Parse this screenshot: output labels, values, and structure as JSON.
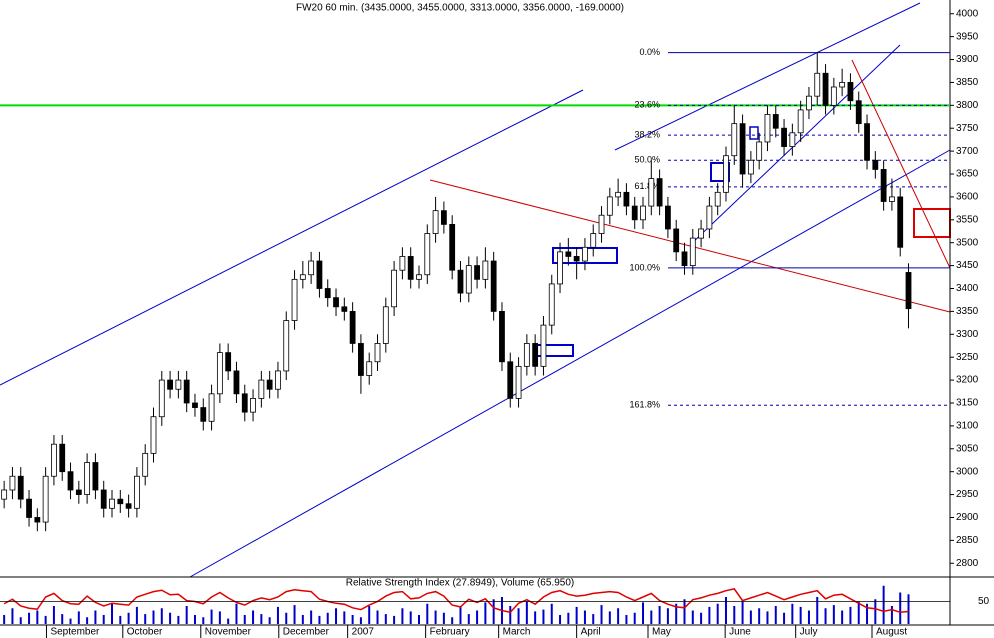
{
  "chart_data": {
    "type": "candlestick",
    "title": "FW20 60 min. (3435.0000, 3455.0000, 3313.0000, 3356.0000, -169.0000)",
    "open": [
      2940,
      2960,
      2990,
      2940,
      2900,
      2890,
      2990,
      3060,
      3000,
      2960,
      2950,
      3020,
      2960,
      2920,
      2940,
      2930,
      2920,
      2990,
      3040,
      3120,
      3200,
      3180,
      3200,
      3150,
      3140,
      3110,
      3170,
      3260,
      3220,
      3170,
      3130,
      3160,
      3200,
      3180,
      3220,
      3330,
      3420,
      3430,
      3460,
      3400,
      3380,
      3360,
      3350,
      3280,
      3210,
      3240,
      3280,
      3360,
      3440,
      3470,
      3420,
      3430,
      3520,
      3570,
      3540,
      3440,
      3390,
      3450,
      3420,
      3460,
      3350,
      3240,
      3160,
      3230,
      3280,
      3230,
      3320,
      3410,
      3480,
      3470,
      3460,
      3490,
      3520,
      3560,
      3600,
      3610,
      3580,
      3550,
      3580,
      3640,
      3580,
      3530,
      3480,
      3450,
      3510,
      3530,
      3580,
      3610,
      3690,
      3760,
      3650,
      3680,
      3720,
      3780,
      3750,
      3710,
      3740,
      3790,
      3820,
      3870,
      3800,
      3840,
      3850,
      3810,
      3760,
      3680,
      3660,
      3590,
      3600,
      3435
    ],
    "high": [
      2980,
      3010,
      3010,
      2960,
      2920,
      3010,
      3080,
      3080,
      3020,
      2980,
      3040,
      3040,
      2980,
      2960,
      2960,
      2950,
      3010,
      3060,
      3140,
      3220,
      3220,
      3220,
      3220,
      3170,
      3160,
      3190,
      3280,
      3280,
      3240,
      3190,
      3180,
      3220,
      3220,
      3240,
      3350,
      3440,
      3460,
      3480,
      3480,
      3420,
      3400,
      3380,
      3370,
      3300,
      3260,
      3300,
      3380,
      3460,
      3490,
      3490,
      3450,
      3540,
      3600,
      3590,
      3560,
      3460,
      3470,
      3470,
      3490,
      3480,
      3370,
      3260,
      3250,
      3300,
      3300,
      3340,
      3430,
      3500,
      3510,
      3490,
      3510,
      3540,
      3580,
      3620,
      3640,
      3630,
      3600,
      3600,
      3680,
      3660,
      3600,
      3550,
      3500,
      3530,
      3550,
      3600,
      3630,
      3710,
      3800,
      3780,
      3700,
      3740,
      3800,
      3800,
      3770,
      3760,
      3810,
      3840,
      3915,
      3890,
      3860,
      3880,
      3870,
      3830,
      3780,
      3700,
      3680,
      3640,
      3620,
      3455
    ],
    "low": [
      2920,
      2940,
      2920,
      2880,
      2870,
      2870,
      2970,
      2980,
      2940,
      2930,
      2930,
      2940,
      2900,
      2900,
      2910,
      2900,
      2900,
      2970,
      3020,
      3100,
      3160,
      3160,
      3130,
      3120,
      3090,
      3090,
      3150,
      3200,
      3150,
      3110,
      3110,
      3140,
      3160,
      3160,
      3200,
      3310,
      3400,
      3410,
      3380,
      3360,
      3340,
      3330,
      3260,
      3170,
      3190,
      3220,
      3260,
      3340,
      3420,
      3400,
      3400,
      3410,
      3500,
      3520,
      3420,
      3370,
      3370,
      3400,
      3400,
      3330,
      3220,
      3140,
      3140,
      3210,
      3210,
      3210,
      3300,
      3390,
      3450,
      3420,
      3440,
      3470,
      3500,
      3540,
      3580,
      3560,
      3530,
      3530,
      3560,
      3560,
      3510,
      3460,
      3430,
      3430,
      3490,
      3510,
      3560,
      3590,
      3670,
      3620,
      3630,
      3660,
      3700,
      3730,
      3690,
      3690,
      3720,
      3770,
      3800,
      3780,
      3780,
      3820,
      3790,
      3740,
      3660,
      3640,
      3570,
      3570,
      3470,
      3313
    ],
    "close": [
      2960,
      2990,
      2940,
      2900,
      2890,
      2990,
      3060,
      3000,
      2960,
      2950,
      3020,
      2960,
      2920,
      2940,
      2930,
      2920,
      2990,
      3040,
      3120,
      3200,
      3180,
      3200,
      3150,
      3140,
      3110,
      3170,
      3260,
      3220,
      3170,
      3130,
      3160,
      3200,
      3180,
      3220,
      3330,
      3420,
      3430,
      3460,
      3400,
      3380,
      3360,
      3350,
      3280,
      3210,
      3240,
      3280,
      3360,
      3440,
      3470,
      3420,
      3430,
      3520,
      3570,
      3540,
      3440,
      3390,
      3450,
      3420,
      3460,
      3350,
      3240,
      3160,
      3230,
      3280,
      3230,
      3320,
      3410,
      3480,
      3470,
      3460,
      3490,
      3520,
      3560,
      3600,
      3610,
      3580,
      3550,
      3580,
      3640,
      3580,
      3530,
      3480,
      3450,
      3510,
      3530,
      3580,
      3610,
      3690,
      3760,
      3650,
      3680,
      3720,
      3780,
      3750,
      3710,
      3740,
      3790,
      3820,
      3870,
      3800,
      3840,
      3850,
      3810,
      3760,
      3680,
      3660,
      3590,
      3600,
      3490,
      3356
    ],
    "color_up": "#ffffff",
    "color_down": "#000000",
    "ylim": [
      2770,
      4030
    ],
    "yticks": [
      2800,
      2850,
      2900,
      2950,
      3000,
      3050,
      3100,
      3150,
      3200,
      3250,
      3300,
      3350,
      3400,
      3450,
      3500,
      3550,
      3600,
      3650,
      3700,
      3750,
      3800,
      3850,
      3900,
      3950,
      4000
    ],
    "xlim": [
      -0.5,
      114
    ],
    "xticks": [
      {
        "value": 5.1,
        "label": "September"
      },
      {
        "value": 14.3,
        "label": "October"
      },
      {
        "value": 23.7,
        "label": "November"
      },
      {
        "value": 33.1,
        "label": "December"
      },
      {
        "value": 41.4,
        "label": "2007"
      },
      {
        "value": 50.8,
        "label": "February"
      },
      {
        "value": 59.6,
        "label": "March"
      },
      {
        "value": 69,
        "label": "April"
      },
      {
        "value": 77.6,
        "label": "May"
      },
      {
        "value": 86.9,
        "label": "June"
      },
      {
        "value": 95.4,
        "label": "July"
      },
      {
        "value": 104.6,
        "label": "August"
      }
    ],
    "support_line": {
      "value": 3800,
      "color": "#00dd00"
    },
    "fib_levels": [
      {
        "label": "0.0%",
        "value": 3915,
        "dashed": false
      },
      {
        "label": "23.6%",
        "value": 3800,
        "dashed": true
      },
      {
        "label": "38.2%",
        "value": 3735,
        "dashed": true
      },
      {
        "label": "50.0%",
        "value": 3680,
        "dashed": true
      },
      {
        "label": "61.8%",
        "value": 3622,
        "dashed": true
      },
      {
        "label": "100.0%",
        "value": 3445,
        "dashed": false
      },
      {
        "label": "161.8%",
        "value": 3145,
        "dashed": true
      }
    ],
    "indicator": {
      "label": "Relative Strength Index (27.8949), Volume (65.950)",
      "ylim": [
        0,
        100
      ],
      "yticks": [
        50
      ],
      "rsi_color": "#e00000",
      "volume_color": "#0000cc",
      "rsi": [
        45,
        55,
        40,
        35,
        33,
        60,
        68,
        52,
        45,
        44,
        62,
        48,
        40,
        46,
        44,
        42,
        60,
        66,
        72,
        75,
        65,
        66,
        52,
        50,
        45,
        60,
        70,
        58,
        48,
        42,
        52,
        58,
        54,
        60,
        72,
        76,
        74,
        72,
        55,
        50,
        46,
        44,
        36,
        32,
        42,
        50,
        62,
        70,
        72,
        56,
        58,
        68,
        72,
        62,
        42,
        38,
        55,
        48,
        56,
        36,
        30,
        26,
        46,
        54,
        44,
        60,
        70,
        74,
        66,
        62,
        64,
        68,
        70,
        72,
        70,
        60,
        52,
        60,
        68,
        52,
        44,
        38,
        36,
        54,
        58,
        64,
        68,
        74,
        78,
        52,
        58,
        64,
        70,
        62,
        54,
        60,
        66,
        70,
        74,
        56,
        64,
        66,
        56,
        46,
        36,
        34,
        28,
        32,
        26,
        27.8949
      ],
      "volume": [
        20,
        35,
        15,
        25,
        30,
        18,
        40,
        22,
        12,
        28,
        15,
        30,
        20,
        45,
        18,
        25,
        38,
        22,
        30,
        35,
        25,
        18,
        40,
        20,
        15,
        32,
        28,
        12,
        45,
        20,
        30,
        22,
        15,
        38,
        25,
        42,
        20,
        30,
        18,
        25,
        35,
        28,
        20,
        15,
        40,
        30,
        22,
        18,
        35,
        28,
        20,
        45,
        30,
        25,
        15,
        38,
        22,
        30,
        48,
        55,
        60,
        40,
        35,
        50,
        28,
        32,
        45,
        20,
        25,
        38,
        30,
        22,
        42,
        28,
        35,
        20,
        25,
        48,
        30,
        40,
        35,
        45,
        55,
        30,
        25,
        38,
        45,
        60,
        40,
        52,
        30,
        35,
        28,
        40,
        25,
        45,
        38,
        30,
        60,
        35,
        42,
        30,
        38,
        50,
        45,
        55,
        85,
        40,
        70,
        65.95
      ]
    }
  }
}
